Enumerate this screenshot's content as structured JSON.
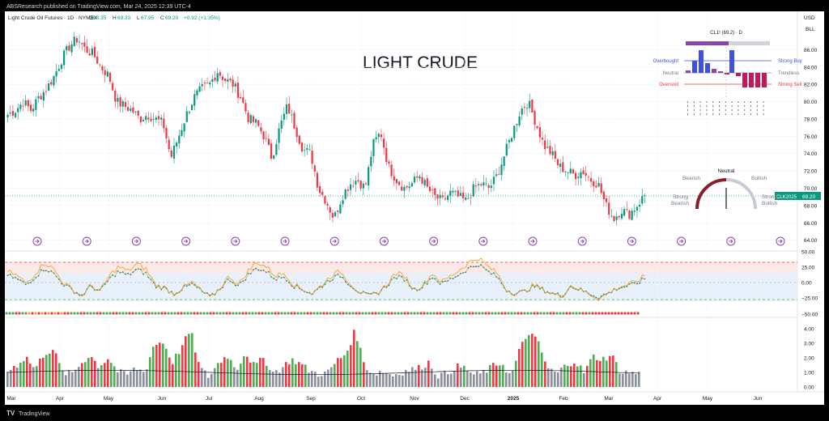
{
  "header": {
    "publisher": "ABSResearch published on TradingView.com, Mar 24, 2025 12:39 UTC-4",
    "symbol_line": "Light Crude Oil Futures · 1D · NYMEX",
    "ohlc": [
      {
        "label": "O",
        "value": "68.35"
      },
      {
        "label": "H",
        "value": "69.33"
      },
      {
        "label": "L",
        "value": "67.95"
      },
      {
        "label": "C",
        "value": "69.20"
      }
    ],
    "change": "+0.92 (+1.35%)"
  },
  "currency": "USD",
  "unit": "BLL",
  "watermark": "LIGHT CRUDE",
  "footer_brand": "TradingView",
  "colors": {
    "up": "#4caf50",
    "down": "#f23645",
    "orange": "#f5a623",
    "accent": "#26a69a",
    "rsi_fill": "#e3f0fb",
    "oversold_fill": "#fde8e8",
    "strong_sell": "#c2185b",
    "buy": "#3f51e0",
    "purple": "#8e44ad"
  },
  "price_axis": {
    "ticks": [
      "86.00",
      "84.00",
      "82.00",
      "80.00",
      "78.00",
      "76.00",
      "74.00",
      "72.00",
      "70.00",
      "68.00",
      "66.00",
      "64.00"
    ],
    "current_symbol": "CLK2025",
    "current_value": "69.20"
  },
  "osc_axis": {
    "ticks": [
      "50.00",
      "25.00",
      "0.00",
      "−25.00",
      "−50.00"
    ]
  },
  "vol_axis": {
    "ticks": [
      "4.00",
      "3.00",
      "2.00",
      "1.00",
      "0.00"
    ]
  },
  "time_axis": [
    "Mar",
    "Apr",
    "May",
    "Jun",
    "Jul",
    "Aug",
    "Sep",
    "Oct",
    "Nov",
    "Dec",
    "2025",
    "Feb",
    "Mar",
    "Apr",
    "May",
    "Jun"
  ],
  "tech_widget": {
    "title": "CL1! (69.2) · D",
    "overbought": "Overbought",
    "neutral": "Neutral",
    "oversold": "Oversold",
    "strong_buy": "Strong Buy",
    "trendless": "Trendless",
    "strong_sell": "Strong Sell"
  },
  "gauge": {
    "neutral": "Neutral",
    "bearish": "Bearish",
    "bullish": "Bullish",
    "strong_bearish": [
      "Strong",
      "Bearish"
    ],
    "strong_bullish": [
      "Strong",
      "Bullish"
    ]
  },
  "chart_data": {
    "type": "candlestick",
    "title": "LIGHT CRUDE",
    "symbol": "CL1! / CLK2025",
    "timeframe": "1D",
    "ylim": [
      63.5,
      88.0
    ],
    "grid": true,
    "price_path": [
      [
        "Mar",
        78.5
      ],
      [
        "Mar",
        79.0
      ],
      [
        "Mar",
        80.0
      ],
      [
        "Mar",
        79.0
      ],
      [
        "Mar",
        80.5
      ],
      [
        "Mar",
        81.5
      ],
      [
        "Apr",
        83.0
      ],
      [
        "Apr",
        85.0
      ],
      [
        "Apr",
        86.5
      ],
      [
        "Apr",
        87.3
      ],
      [
        "Apr",
        86.0
      ],
      [
        "Apr",
        85.5
      ],
      [
        "Apr",
        84.0
      ],
      [
        "May",
        83.0
      ],
      [
        "May",
        80.0
      ],
      [
        "May",
        79.5
      ],
      [
        "May",
        79.0
      ],
      [
        "May",
        78.0
      ],
      [
        "May",
        78.5
      ],
      [
        "May",
        78.0
      ],
      [
        "Jun",
        77.5
      ],
      [
        "Jun",
        73.5
      ],
      [
        "Jun",
        76.0
      ],
      [
        "Jun",
        78.5
      ],
      [
        "Jun",
        80.5
      ],
      [
        "Jun",
        81.5
      ],
      [
        "Jul",
        82.0
      ],
      [
        "Jul",
        83.5
      ],
      [
        "Jul",
        82.5
      ],
      [
        "Jul",
        82.0
      ],
      [
        "Jul",
        80.5
      ],
      [
        "Jul",
        78.0
      ],
      [
        "Jul",
        77.5
      ],
      [
        "Aug",
        76.0
      ],
      [
        "Aug",
        73.5
      ],
      [
        "Aug",
        77.0
      ],
      [
        "Aug",
        79.5
      ],
      [
        "Aug",
        77.0
      ],
      [
        "Aug",
        74.5
      ],
      [
        "Aug",
        74.0
      ],
      [
        "Sep",
        70.0
      ],
      [
        "Sep",
        68.5
      ],
      [
        "Sep",
        66.5
      ],
      [
        "Sep",
        69.0
      ],
      [
        "Sep",
        70.5
      ],
      [
        "Sep",
        71.0
      ],
      [
        "Oct",
        70.0
      ],
      [
        "Oct",
        75.0
      ],
      [
        "Oct",
        76.5
      ],
      [
        "Oct",
        72.5
      ],
      [
        "Oct",
        71.0
      ],
      [
        "Oct",
        70.0
      ],
      [
        "Nov",
        70.5
      ],
      [
        "Nov",
        71.5
      ],
      [
        "Nov",
        70.0
      ],
      [
        "Nov",
        69.0
      ],
      [
        "Nov",
        68.5
      ],
      [
        "Nov",
        69.5
      ],
      [
        "Nov",
        69.0
      ],
      [
        "Dec",
        68.5
      ],
      [
        "Dec",
        70.0
      ],
      [
        "Dec",
        70.5
      ],
      [
        "Dec",
        70.0
      ],
      [
        "Dec",
        71.5
      ],
      [
        "Dec",
        74.0
      ],
      [
        "2025",
        76.5
      ],
      [
        "2025",
        79.0
      ],
      [
        "2025",
        80.0
      ],
      [
        "2025",
        77.5
      ],
      [
        "2025",
        75.0
      ],
      [
        "2025",
        74.0
      ],
      [
        "Feb",
        72.5
      ],
      [
        "Feb",
        72.0
      ],
      [
        "Feb",
        71.5
      ],
      [
        "Feb",
        72.0
      ],
      [
        "Feb",
        71.0
      ],
      [
        "Feb",
        70.5
      ],
      [
        "Mar",
        68.0
      ],
      [
        "Mar",
        66.5
      ],
      [
        "Mar",
        67.5
      ],
      [
        "Mar",
        67.0
      ],
      [
        "Mar",
        68.0
      ],
      [
        "Mar",
        69.2
      ]
    ],
    "volume_path": [
      1.1,
      1.5,
      2.1,
      1.2,
      2.3,
      2.6,
      1.0,
      0.9,
      1.6,
      2.2,
      1.4,
      2.0,
      1.1,
      0.8,
      1.3,
      1.0,
      2.9,
      3.1,
      1.7,
      2.7,
      3.9,
      1.3,
      0.7,
      1.6,
      2.2,
      1.2,
      2.4,
      1.4,
      2.0,
      1.0,
      1.3,
      1.9,
      1.6,
      1.1,
      0.9,
      1.0,
      1.8,
      2.3,
      3.9,
      1.5,
      0.9,
      1.1,
      0.8,
      1.0,
      1.2,
      1.3,
      1.7,
      0.8,
      0.9,
      1.4,
      1.3,
      0.8,
      1.0,
      1.4,
      1.7,
      0.7,
      2.6,
      3.8,
      3.0,
      1.3,
      0.9,
      1.5,
      1.8,
      1.0,
      2.1,
      1.9,
      2.2,
      1.0,
      1.0,
      0.9
    ],
    "oscillator_path": [
      10,
      5,
      -3,
      8,
      20,
      12,
      -2,
      -10,
      -18,
      -5,
      -12,
      5,
      15,
      10,
      18,
      12,
      -5,
      -8,
      -15,
      -8,
      -2,
      -12,
      -20,
      -8,
      5,
      -5,
      10,
      20,
      15,
      5,
      8,
      -5,
      -10,
      -15,
      -5,
      5,
      10,
      -2,
      -12,
      -18,
      -15,
      -5,
      8,
      5,
      -10,
      -5,
      8,
      -2,
      5,
      12,
      20,
      25,
      15,
      8,
      -10,
      -15,
      -12,
      -5,
      -10,
      -15,
      -18,
      -5,
      -10,
      -15,
      -20,
      -15,
      -8,
      -5,
      -2,
      5
    ]
  }
}
